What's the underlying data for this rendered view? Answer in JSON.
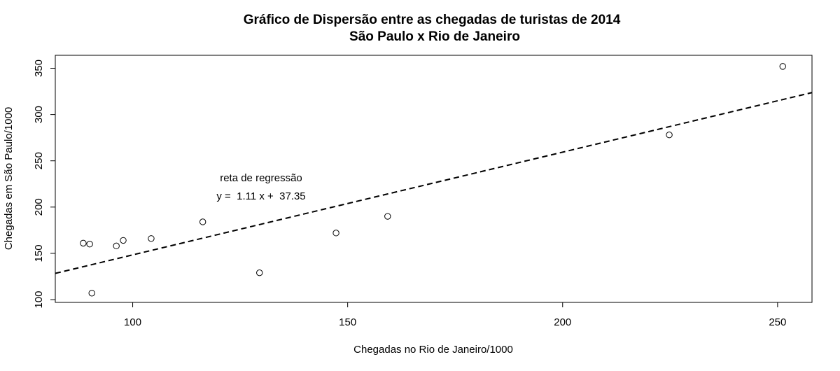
{
  "chart_data": {
    "type": "scatter",
    "title": "Gráfico de Dispersão entre as chegadas de turistas de 2014",
    "subtitle": "São Paulo x Rio de Janeiro",
    "xlabel": "Chegadas no Rio de Janeiro/1000",
    "ylabel": "Chegadas em São Paulo/1000",
    "xlim": [
      82,
      258
    ],
    "ylim": [
      97,
      364
    ],
    "xticks": [
      100,
      150,
      200,
      250
    ],
    "yticks": [
      100,
      150,
      200,
      250,
      300,
      350
    ],
    "grid": false,
    "points": [
      {
        "x": 88.5,
        "y": 161
      },
      {
        "x": 90.0,
        "y": 160
      },
      {
        "x": 90.5,
        "y": 107
      },
      {
        "x": 96.2,
        "y": 158
      },
      {
        "x": 97.8,
        "y": 164
      },
      {
        "x": 104.3,
        "y": 166
      },
      {
        "x": 116.3,
        "y": 184
      },
      {
        "x": 129.5,
        "y": 129
      },
      {
        "x": 147.3,
        "y": 172
      },
      {
        "x": 159.3,
        "y": 190
      },
      {
        "x": 224.8,
        "y": 278
      },
      {
        "x": 251.2,
        "y": 352
      }
    ],
    "regression": {
      "slope": 1.11,
      "intercept": 37.35,
      "label": "reta de regressão",
      "equation": "y =  1.11 x +  37.35",
      "style": "dashed"
    }
  }
}
